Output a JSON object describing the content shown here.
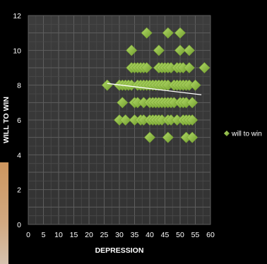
{
  "chart_data": {
    "type": "scatter",
    "title": "",
    "xlabel": "DEPRESSION",
    "ylabel": "WILL TO WIN",
    "xlim": [
      0,
      60
    ],
    "ylim": [
      0,
      12
    ],
    "x_ticks": [
      0,
      5,
      10,
      15,
      20,
      25,
      30,
      35,
      40,
      45,
      50,
      55,
      60
    ],
    "y_ticks": [
      0,
      2,
      4,
      6,
      8,
      10,
      12
    ],
    "grid": true,
    "legend_position": "right",
    "series": [
      {
        "name": "will to win",
        "color": "#8cbf3f",
        "marker": "diamond",
        "points": [
          [
            39,
            11
          ],
          [
            46,
            11
          ],
          [
            50,
            11
          ],
          [
            34,
            10
          ],
          [
            43,
            10
          ],
          [
            50,
            10
          ],
          [
            53,
            10
          ],
          [
            34,
            9
          ],
          [
            35,
            9
          ],
          [
            36,
            9
          ],
          [
            37,
            9
          ],
          [
            38,
            9
          ],
          [
            39,
            9
          ],
          [
            43,
            9
          ],
          [
            44,
            9
          ],
          [
            45,
            9
          ],
          [
            46,
            9
          ],
          [
            47,
            9
          ],
          [
            49,
            9
          ],
          [
            50,
            9
          ],
          [
            51,
            9
          ],
          [
            53,
            9
          ],
          [
            58,
            9
          ],
          [
            26,
            8
          ],
          [
            30,
            8
          ],
          [
            31,
            8
          ],
          [
            32,
            8
          ],
          [
            33,
            8
          ],
          [
            34,
            8
          ],
          [
            36,
            8
          ],
          [
            37,
            8
          ],
          [
            38,
            8
          ],
          [
            39,
            8
          ],
          [
            40,
            8
          ],
          [
            41,
            8
          ],
          [
            42,
            8
          ],
          [
            43,
            8
          ],
          [
            44,
            8
          ],
          [
            45,
            8
          ],
          [
            46,
            8
          ],
          [
            48,
            8
          ],
          [
            49,
            8
          ],
          [
            50,
            8
          ],
          [
            51,
            8
          ],
          [
            52,
            8
          ],
          [
            53,
            8
          ],
          [
            55,
            8
          ],
          [
            31,
            7
          ],
          [
            35,
            7
          ],
          [
            36,
            7
          ],
          [
            38,
            7
          ],
          [
            40,
            7
          ],
          [
            41,
            7
          ],
          [
            42,
            7
          ],
          [
            43,
            7
          ],
          [
            44,
            7
          ],
          [
            45,
            7
          ],
          [
            46,
            7
          ],
          [
            47,
            7
          ],
          [
            48,
            7
          ],
          [
            50,
            7
          ],
          [
            51,
            7
          ],
          [
            52,
            7
          ],
          [
            54,
            7
          ],
          [
            30,
            6
          ],
          [
            32,
            6
          ],
          [
            35,
            6
          ],
          [
            37,
            6
          ],
          [
            38,
            6
          ],
          [
            40,
            6
          ],
          [
            41,
            6
          ],
          [
            42,
            6
          ],
          [
            43,
            6
          ],
          [
            44,
            6
          ],
          [
            46,
            6
          ],
          [
            47,
            6
          ],
          [
            49,
            6
          ],
          [
            51,
            6
          ],
          [
            52,
            6
          ],
          [
            53,
            6
          ],
          [
            54,
            6
          ],
          [
            40,
            5
          ],
          [
            46,
            5
          ],
          [
            52,
            5
          ],
          [
            54,
            5
          ]
        ]
      }
    ],
    "trendline": {
      "color": "#ffffff",
      "x_range": [
        26,
        57
      ],
      "y_range": [
        8.1,
        7.45
      ]
    }
  }
}
